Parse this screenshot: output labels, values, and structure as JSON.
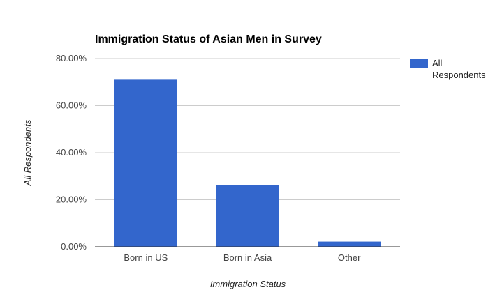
{
  "chart_data": {
    "type": "bar",
    "title": "Immigration Status of Asian Men in Survey",
    "xlabel": "Immigration Status",
    "ylabel": "All Respondents",
    "categories": [
      "Born in US",
      "Born in Asia",
      "Other"
    ],
    "series": [
      {
        "name": "All Respondents",
        "values": [
          71.0,
          26.3,
          2.2
        ],
        "color": "#3366cc"
      }
    ],
    "ylim": [
      0,
      80
    ],
    "yticks": [
      "0.00%",
      "20.00%",
      "40.00%",
      "60.00%",
      "80.00%"
    ],
    "ytick_values": [
      0,
      20,
      40,
      60,
      80
    ],
    "grid": true,
    "legend_position": "right",
    "legend_label_lines": [
      "All",
      "Respondents"
    ]
  }
}
